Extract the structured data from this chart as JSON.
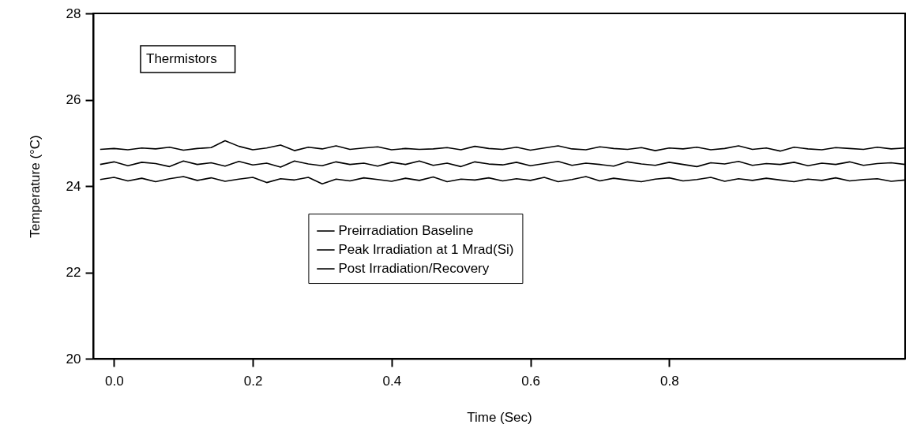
{
  "chart_data": {
    "type": "line",
    "xlabel": "Time (Sec)",
    "ylabel": "Temperature (°C)",
    "annotations": [
      "Thermistors"
    ],
    "x": [
      -0.02,
      0,
      0.02,
      0.04,
      0.06,
      0.08,
      0.1,
      0.12,
      0.14,
      0.16,
      0.18,
      0.2,
      0.22,
      0.24,
      0.26,
      0.28,
      0.3,
      0.32,
      0.34,
      0.36,
      0.38,
      0.4,
      0.42,
      0.44,
      0.46,
      0.48,
      0.5,
      0.52,
      0.54,
      0.56,
      0.58,
      0.6,
      0.62,
      0.64,
      0.66,
      0.68,
      0.7,
      0.72,
      0.74,
      0.76,
      0.78,
      0.8,
      0.82,
      0.84,
      0.86,
      0.88,
      0.9,
      0.92,
      0.94,
      0.96,
      0.98,
      1,
      1.02,
      1.04,
      1.06,
      1.08,
      1.1,
      1.12,
      1.14
    ],
    "series": [
      {
        "name": "Preirradiation Baseline",
        "color": "#000000",
        "values": [
          24.85,
          24.87,
          24.84,
          24.88,
          24.86,
          24.9,
          24.83,
          24.87,
          24.89,
          25.05,
          24.92,
          24.84,
          24.88,
          24.95,
          24.82,
          24.9,
          24.86,
          24.93,
          24.85,
          24.88,
          24.91,
          24.84,
          24.87,
          24.85,
          24.86,
          24.89,
          24.84,
          24.92,
          24.87,
          24.85,
          24.9,
          24.83,
          24.88,
          24.93,
          24.86,
          24.84,
          24.91,
          24.87,
          24.85,
          24.89,
          24.82,
          24.88,
          24.86,
          24.9,
          24.84,
          24.87,
          24.93,
          24.85,
          24.88,
          24.81,
          24.9,
          24.86,
          24.84,
          24.89,
          24.87,
          24.85,
          24.9,
          24.86,
          24.88
        ]
      },
      {
        "name": "Peak Irradiation at 1 Mrad(Si)",
        "color": "#000000",
        "values": [
          24.5,
          24.56,
          24.47,
          24.55,
          24.52,
          24.45,
          24.58,
          24.5,
          24.54,
          24.46,
          24.57,
          24.49,
          24.53,
          24.44,
          24.58,
          24.51,
          24.47,
          24.56,
          24.5,
          24.53,
          24.46,
          24.55,
          24.5,
          24.58,
          24.48,
          24.53,
          24.45,
          24.56,
          24.51,
          24.49,
          24.55,
          24.47,
          24.52,
          24.57,
          24.48,
          24.53,
          24.5,
          24.46,
          24.56,
          24.51,
          24.48,
          24.55,
          24.5,
          24.45,
          24.54,
          24.51,
          24.57,
          24.48,
          24.52,
          24.5,
          24.55,
          24.47,
          24.53,
          24.5,
          24.56,
          24.48,
          24.52,
          24.54,
          24.5
        ]
      },
      {
        "name": "Post Irradiation/Recovery",
        "color": "#000000",
        "values": [
          24.15,
          24.2,
          24.12,
          24.18,
          24.1,
          24.17,
          24.22,
          24.13,
          24.19,
          24.11,
          24.16,
          24.2,
          24.08,
          24.17,
          24.14,
          24.2,
          24.05,
          24.16,
          24.12,
          24.19,
          24.15,
          24.11,
          24.18,
          24.13,
          24.21,
          24.1,
          24.16,
          24.14,
          24.19,
          24.12,
          24.17,
          24.13,
          24.2,
          24.1,
          24.15,
          24.22,
          24.12,
          24.18,
          24.14,
          24.1,
          24.16,
          24.19,
          24.12,
          24.15,
          24.2,
          24.11,
          24.17,
          24.13,
          24.18,
          24.14,
          24.1,
          24.16,
          24.13,
          24.19,
          24.12,
          24.15,
          24.17,
          24.11,
          24.14
        ]
      }
    ],
    "xlim": [
      -0.03,
      1.14
    ],
    "xticks": [
      {
        "value": 0,
        "label": "0.0"
      },
      0.2,
      0.4,
      0.6,
      0.8
    ],
    "ylim": [
      20,
      28
    ],
    "yticks": [
      20,
      22,
      24,
      26,
      28
    ],
    "grid": false,
    "legend": "bottom",
    "line_style": "solid"
  }
}
